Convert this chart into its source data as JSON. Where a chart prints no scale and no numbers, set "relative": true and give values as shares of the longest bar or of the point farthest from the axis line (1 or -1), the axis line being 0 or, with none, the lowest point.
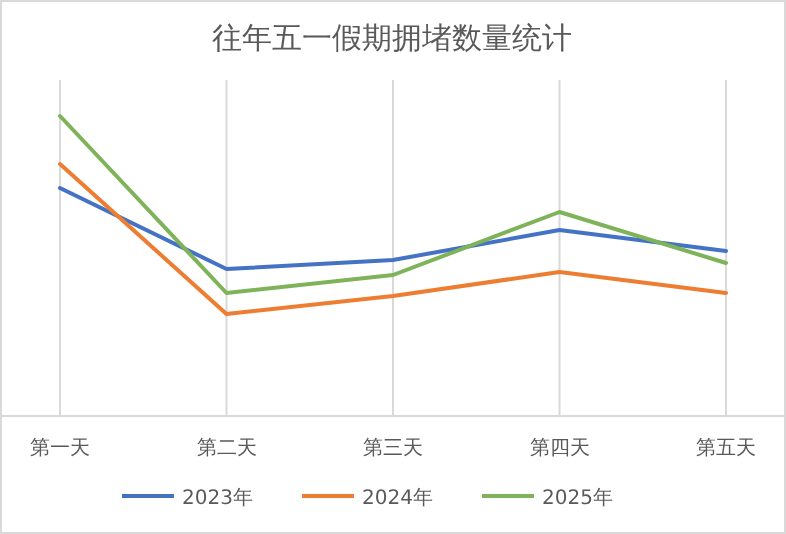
{
  "chart_data": {
    "type": "line",
    "title": "往年五一假期拥堵数量统计",
    "categories": [
      "第一天",
      "第二天",
      "第三天",
      "第四天",
      "第五天"
    ],
    "series": [
      {
        "name": "2023年",
        "color": "#4472c4",
        "values": [
          0.76,
          0.49,
          0.52,
          0.62,
          0.55
        ]
      },
      {
        "name": "2024年",
        "color": "#ed7d31",
        "values": [
          0.84,
          0.34,
          0.4,
          0.48,
          0.41
        ]
      },
      {
        "name": "2025年",
        "color": "#7fb35a",
        "values": [
          1,
          0.41,
          0.47,
          0.68,
          0.51
        ]
      }
    ],
    "relative": true,
    "grid": "x",
    "legend": "bottom"
  }
}
